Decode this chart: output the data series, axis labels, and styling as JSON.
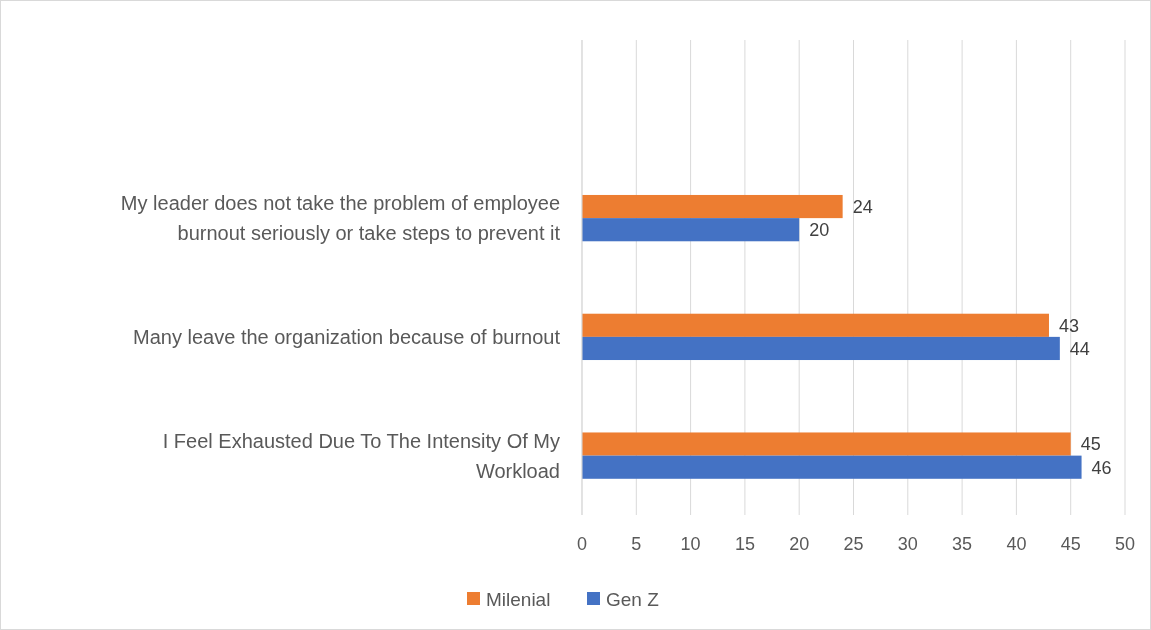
{
  "chart_data": {
    "type": "bar",
    "orientation": "horizontal",
    "categories": [
      null,
      "My leader does not take the problem of employee burnout seriously or take steps to prevent it",
      "Many leave the organization because of burnout",
      "I Feel Exhausted Due To The Intensity Of My Workload"
    ],
    "series": [
      {
        "name": "Milenial",
        "color": "#ed7d31",
        "values": [
          null,
          24,
          43,
          45
        ]
      },
      {
        "name": "Gen Z",
        "color": "#4472c4",
        "values": [
          null,
          20,
          44,
          46
        ]
      }
    ],
    "xlim": [
      0,
      50
    ],
    "xticks": [
      0,
      5,
      10,
      15,
      20,
      25,
      30,
      35,
      40,
      45,
      50
    ],
    "grid": "x",
    "legend": "bottom",
    "data_labels": true
  }
}
